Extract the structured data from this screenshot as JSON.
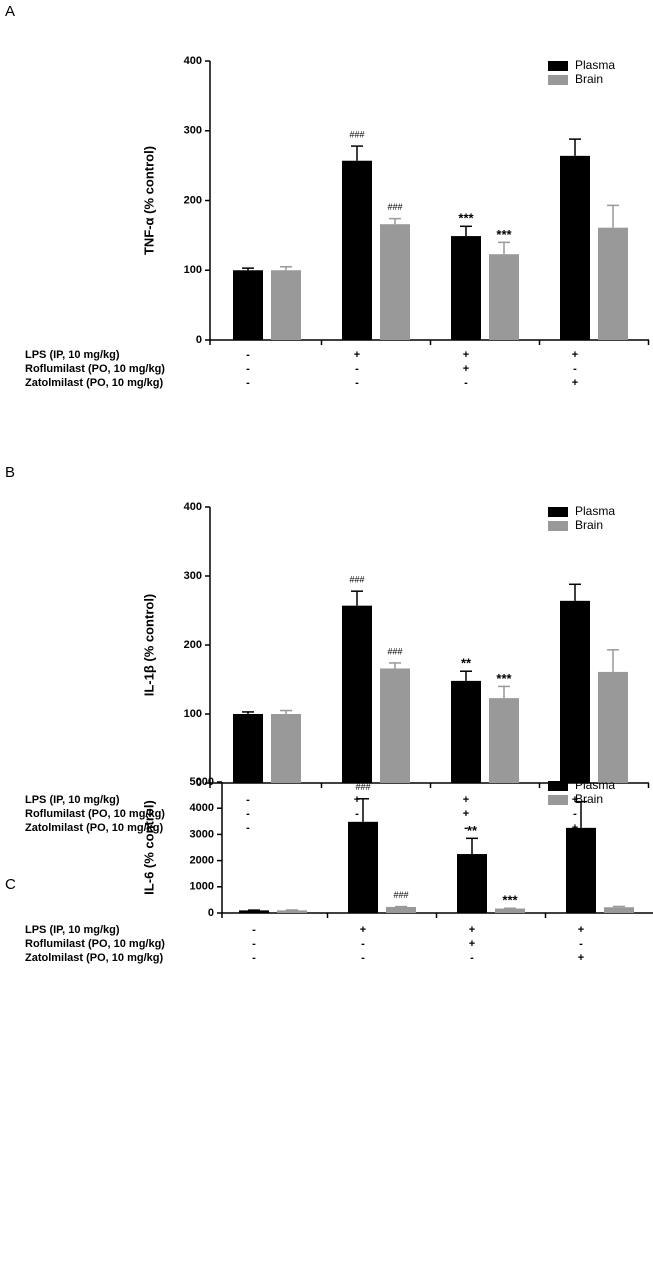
{
  "chart_data": [
    {
      "type": "bar",
      "panel": "A",
      "ylabel": "TNF-α (% control)",
      "ylim": [
        0,
        400
      ],
      "yticks": [
        0,
        100,
        200,
        300,
        400
      ],
      "series": [
        {
          "name": "Plasma",
          "color": "#000000",
          "values": [
            100,
            257,
            149,
            264
          ],
          "errors": [
            3,
            21,
            14,
            24
          ],
          "annotations": [
            null,
            "###",
            "***",
            null
          ]
        },
        {
          "name": "Brain",
          "color": "#999999",
          "values": [
            100,
            166,
            123,
            161
          ],
          "errors": [
            5,
            8,
            17,
            32
          ],
          "annotations": [
            null,
            "###",
            "***",
            null
          ]
        }
      ],
      "treatments": [
        {
          "label": "LPS (IP, 10 mg/kg)",
          "signs": [
            "-",
            "+",
            "+",
            "+"
          ]
        },
        {
          "label": "Roflumilast (PO, 10 mg/kg)",
          "signs": [
            "-",
            "-",
            "+",
            "-"
          ]
        },
        {
          "label": "Zatolmilast (PO, 10 mg/kg)",
          "signs": [
            "-",
            "-",
            "-",
            "+"
          ]
        }
      ]
    },
    {
      "type": "bar",
      "panel": "B",
      "ylabel": "IL-1β (% control)",
      "ylim": [
        0,
        400
      ],
      "yticks": [
        0,
        100,
        200,
        300,
        400
      ],
      "series": [
        {
          "name": "Plasma",
          "color": "#000000",
          "values": [
            100,
            257,
            148,
            264
          ],
          "errors": [
            3,
            21,
            14,
            24
          ],
          "annotations": [
            null,
            "###",
            "**",
            null
          ]
        },
        {
          "name": "Brain",
          "color": "#999999",
          "values": [
            100,
            166,
            123,
            161
          ],
          "errors": [
            5,
            8,
            17,
            32
          ],
          "annotations": [
            null,
            "###",
            "***",
            null
          ]
        }
      ],
      "treatments": [
        {
          "label": "LPS (IP, 10 mg/kg)",
          "signs": [
            "-",
            "+",
            "+",
            "+"
          ]
        },
        {
          "label": "Roflumilast (PO, 10 mg/kg)",
          "signs": [
            "-",
            "-",
            "+",
            "-"
          ]
        },
        {
          "label": "Zatolmilast (PO, 10 mg/kg)",
          "signs": [
            "-",
            "-",
            "-",
            "+"
          ]
        }
      ]
    },
    {
      "type": "bar",
      "panel": "C",
      "ylabel": "IL-6 (% control)",
      "ylim": [
        0,
        5000
      ],
      "yticks": [
        0,
        1000,
        2000,
        3000,
        4000,
        5000
      ],
      "series": [
        {
          "name": "Plasma",
          "color": "#000000",
          "values": [
            100,
            3480,
            2250,
            3250
          ],
          "errors": [
            10,
            880,
            600,
            1000
          ],
          "annotations": [
            null,
            "###",
            "**",
            null
          ]
        },
        {
          "name": "Brain",
          "color": "#999999",
          "values": [
            100,
            230,
            170,
            220
          ],
          "errors": [
            15,
            15,
            10,
            30
          ],
          "annotations": [
            null,
            "###",
            "***",
            null
          ]
        }
      ],
      "treatments": [
        {
          "label": "LPS (IP, 10 mg/kg)",
          "signs": [
            "-",
            "+",
            "+",
            "+"
          ]
        },
        {
          "label": "Roflumilast (PO, 10 mg/kg)",
          "signs": [
            "-",
            "-",
            "+",
            "-"
          ]
        },
        {
          "label": "Zatolmilast (PO, 10 mg/kg)",
          "signs": [
            "-",
            "-",
            "-",
            "+"
          ]
        }
      ]
    }
  ]
}
